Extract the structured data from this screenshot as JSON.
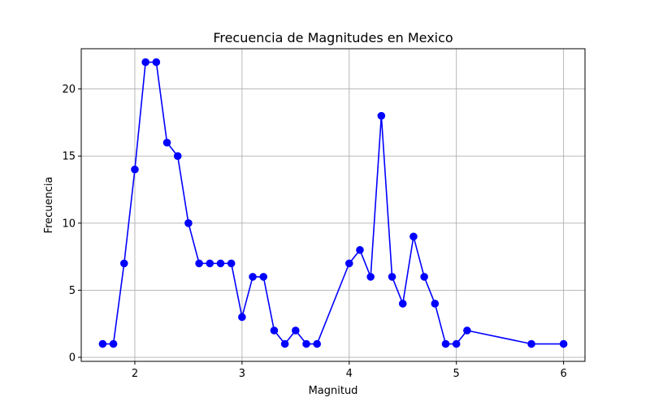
{
  "chart_data": {
    "type": "line",
    "title": "Frecuencia de Magnitudes en Mexico",
    "xlabel": "Magnitud",
    "ylabel": "Frecuencia",
    "xlim": [
      1.5,
      6.2
    ],
    "ylim": [
      -0.3,
      23.0
    ],
    "xticks": [
      2,
      3,
      4,
      5,
      6
    ],
    "xtick_labels": [
      "2",
      "3",
      "4",
      "5",
      "6"
    ],
    "yticks": [
      0,
      5,
      10,
      15,
      20
    ],
    "ytick_labels": [
      "0",
      "5",
      "10",
      "15",
      "20"
    ],
    "grid": true,
    "series": [
      {
        "color": "#0000ff",
        "marker": "circle",
        "x": [
          1.7,
          1.8,
          1.9,
          2.0,
          2.1,
          2.2,
          2.3,
          2.4,
          2.5,
          2.6,
          2.7,
          2.8,
          2.9,
          3.0,
          3.1,
          3.2,
          3.3,
          3.4,
          3.5,
          3.6,
          3.7,
          4.0,
          4.1,
          4.2,
          4.3,
          4.4,
          4.5,
          4.6,
          4.7,
          4.8,
          4.9,
          5.0,
          5.1,
          5.7,
          6.0
        ],
        "y": [
          1,
          1,
          7,
          14,
          22,
          22,
          16,
          15,
          10,
          7,
          7,
          7,
          7,
          3,
          6,
          6,
          2,
          1,
          2,
          1,
          1,
          7,
          8,
          6,
          18,
          6,
          4,
          9,
          6,
          4,
          1,
          1,
          2,
          1,
          1
        ]
      }
    ]
  }
}
